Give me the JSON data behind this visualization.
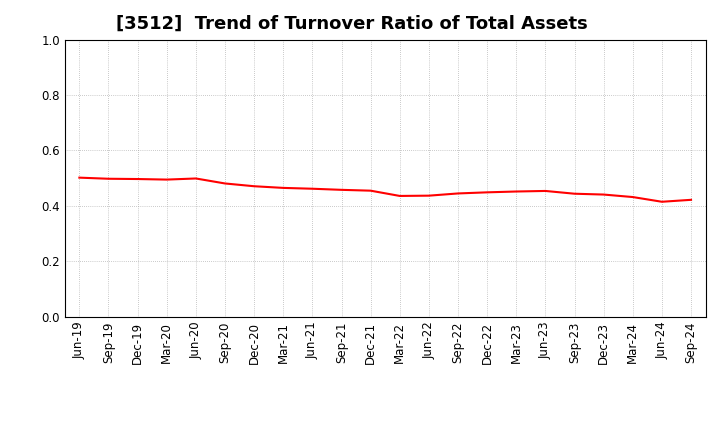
{
  "title": "[3512]  Trend of Turnover Ratio of Total Assets",
  "x_labels": [
    "Jun-19",
    "Sep-19",
    "Dec-19",
    "Mar-20",
    "Jun-20",
    "Sep-20",
    "Dec-20",
    "Mar-21",
    "Jun-21",
    "Sep-21",
    "Dec-21",
    "Mar-22",
    "Jun-22",
    "Sep-22",
    "Dec-22",
    "Mar-23",
    "Jun-23",
    "Sep-23",
    "Dec-23",
    "Mar-24",
    "Jun-24",
    "Sep-24"
  ],
  "values": [
    0.502,
    0.498,
    0.497,
    0.495,
    0.499,
    0.481,
    0.471,
    0.465,
    0.462,
    0.458,
    0.455,
    0.436,
    0.437,
    0.445,
    0.449,
    0.452,
    0.454,
    0.444,
    0.441,
    0.432,
    0.415,
    0.422
  ],
  "line_color": "#ff0000",
  "line_width": 1.5,
  "ylim": [
    0.0,
    1.0
  ],
  "yticks": [
    0.0,
    0.2,
    0.4,
    0.6,
    0.8,
    1.0
  ],
  "background_color": "#ffffff",
  "grid_color": "#999999",
  "title_fontsize": 13,
  "tick_fontsize": 8.5
}
